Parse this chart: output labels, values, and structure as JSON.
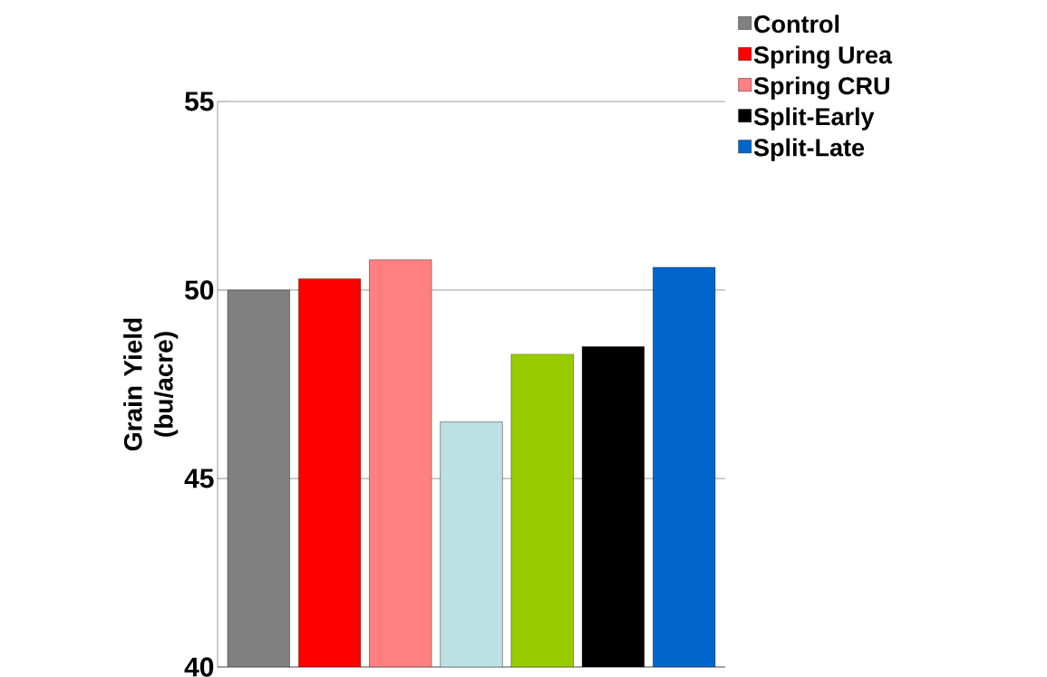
{
  "chart_data": {
    "type": "bar",
    "ylabel": "Grain Yield (bu/acre)",
    "categories": [
      null,
      null,
      null,
      null,
      null,
      null,
      null
    ],
    "series": [
      {
        "name": "Control",
        "color": "#808080",
        "values": [
          50.0,
          null,
          null,
          null,
          null,
          null,
          null
        ]
      },
      {
        "name": "Spring Urea",
        "color": "#ff0000",
        "values": [
          null,
          50.3,
          null,
          null,
          null,
          null,
          null
        ]
      },
      {
        "name": "Spring CRU",
        "color": "#ff8080",
        "values": [
          null,
          null,
          50.8,
          null,
          null,
          null,
          null
        ]
      },
      {
        "color": "#bde0e3",
        "values": [
          null,
          null,
          null,
          46.5,
          null,
          null,
          null
        ]
      },
      {
        "color": "#99cc00",
        "values": [
          null,
          null,
          null,
          null,
          48.3,
          null,
          null
        ]
      },
      {
        "name": "Split-Early",
        "color": "#000000",
        "values": [
          null,
          null,
          null,
          null,
          null,
          48.5,
          null
        ]
      },
      {
        "name": "Split-Late",
        "color": "#0066cc",
        "values": [
          null,
          null,
          null,
          null,
          null,
          null,
          50.6
        ]
      }
    ],
    "ylim": [
      40,
      55
    ],
    "yticks": [
      40,
      45,
      50,
      55
    ],
    "grid": "y",
    "legend": "top right",
    "tick_labels": "y"
  }
}
